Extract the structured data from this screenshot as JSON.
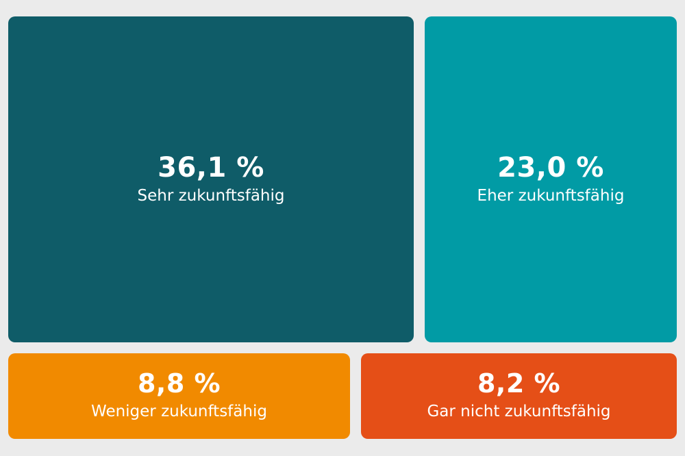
{
  "chart_data": {
    "type": "treemap",
    "title": "",
    "items": [
      {
        "label": "Sehr zukunftsfähig",
        "value": 36.1,
        "display": "36,1 %",
        "color": "#0f5c68"
      },
      {
        "label": "Eher zukunftsfähig",
        "value": 23.0,
        "display": "23,0 %",
        "color": "#019ba5"
      },
      {
        "label": "Weniger zukunftsfähig",
        "value": 8.8,
        "display": "8,8 %",
        "color": "#f18a00"
      },
      {
        "label": "Gar nicht zukunftsfähig",
        "value": 8.2,
        "display": "8,2 %",
        "color": "#e54f17"
      }
    ]
  }
}
